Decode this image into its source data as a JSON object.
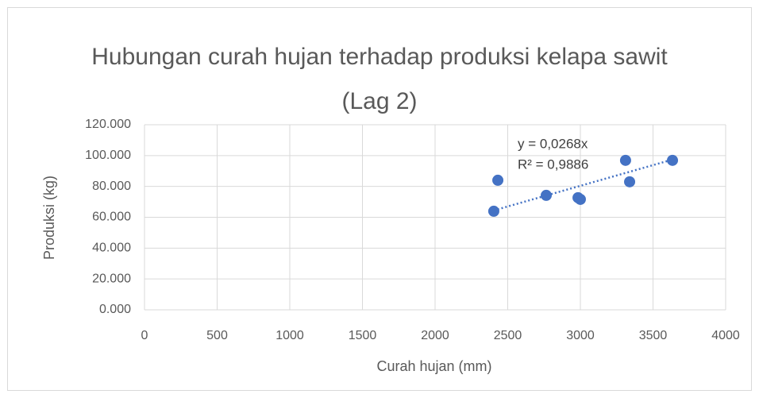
{
  "chart_data": {
    "type": "scatter",
    "title": "Hubungan curah hujan terhadap produksi kelapa sawit (Lag 2)",
    "x_label": "Curah hujan (mm)",
    "y_label": "Produksi (kg)",
    "series": [
      {
        "name": "Produksi",
        "color": "#4472c4",
        "x": [
          2404,
          2432,
          2765,
          2984,
          3000,
          3311,
          3339,
          3634
        ],
        "values": [
          63.9,
          84,
          74.2,
          72.7,
          71.6,
          96.9,
          83,
          96.9
        ]
      }
    ],
    "trendline": {
      "slope": 0.0268,
      "equation": "y = 0,0268x",
      "r_squared": 0.9886,
      "r_squared_label": "R² = 0,9886"
    },
    "xlim": [
      0,
      4000
    ],
    "xticks": [
      0,
      500,
      1000,
      1500,
      2000,
      2500,
      3000,
      3500,
      4000
    ],
    "ylim": [
      0,
      120
    ],
    "yticks": [
      {
        "value": 0,
        "label": "0.000"
      },
      {
        "value": 20,
        "label": "20.000"
      },
      {
        "value": 40,
        "label": "40.000"
      },
      {
        "value": 60,
        "label": "60.000"
      },
      {
        "value": 80,
        "label": "80.000"
      },
      {
        "value": 100,
        "label": "100.000"
      },
      {
        "value": 120,
        "label": "120.000"
      }
    ],
    "grid": true
  }
}
